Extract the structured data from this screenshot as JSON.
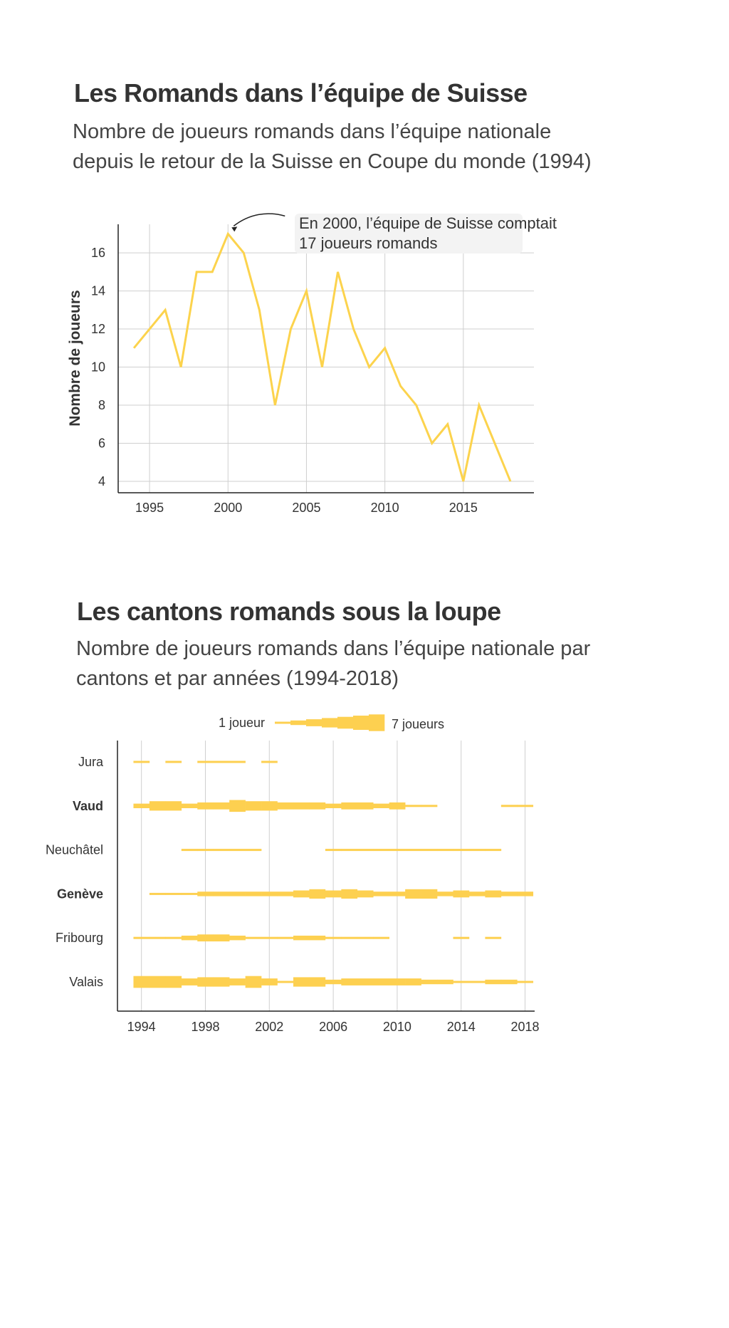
{
  "chart_data": [
    {
      "type": "line",
      "title": "Les Romands dans l’équipe de Suisse",
      "subtitle_lines": [
        "Nombre de joueurs romands dans l’équipe nationale",
        "depuis le retour de la Suisse en Coupe du monde (1994)"
      ],
      "ylabel": "Nombre de joueurs",
      "xlabel": "",
      "xlim": [
        1993,
        2019.5
      ],
      "ylim": [
        3.4,
        17.5
      ],
      "x_ticks": [
        1995,
        2000,
        2005,
        2010,
        2015
      ],
      "y_ticks": [
        4,
        6,
        8,
        10,
        12,
        14,
        16
      ],
      "grid": true,
      "color": "#fcd34d",
      "series": [
        {
          "x": [
            1994,
            1995,
            1996,
            1997,
            1998,
            1999,
            2000,
            2001,
            2002,
            2003,
            2004,
            2005,
            2006,
            2007,
            2008,
            2009,
            2010,
            2011,
            2012,
            2013,
            2014,
            2015,
            2016,
            2017,
            2018
          ],
          "values": [
            11,
            12,
            13,
            10,
            15,
            15,
            17,
            16,
            13,
            8,
            12,
            14,
            10,
            15,
            12,
            10,
            11,
            9,
            8,
            6,
            7,
            4,
            8,
            6,
            4
          ]
        }
      ],
      "annotation": {
        "x": 2000,
        "y": 17,
        "lines": [
          "En 2000, l’équipe de Suisse comptait",
          "17 joueurs romands"
        ]
      }
    },
    {
      "type": "variable-width-timeline",
      "title": "Les cantons romands sous la loupe",
      "subtitle_lines": [
        "Nombre de joueurs romands dans l’équipe nationale par",
        "cantons et par années (1994-2018)"
      ],
      "xlim": [
        1992.5,
        2018.6
      ],
      "x_ticks": [
        1994,
        1998,
        2002,
        2006,
        2010,
        2014,
        2018
      ],
      "grid": true,
      "color": "#fdd050",
      "legend": {
        "placement": "top-center",
        "min_label": "1 joueur",
        "max_label": "7 joueurs",
        "steps": [
          1,
          2,
          3,
          4,
          5,
          6,
          7
        ]
      },
      "rows": [
        {
          "name": "Jura",
          "bold": false,
          "values": [
            1,
            0,
            1,
            0,
            1,
            1,
            1,
            0,
            1,
            0,
            0,
            0,
            0,
            0,
            0,
            0,
            0,
            0,
            0,
            0,
            0,
            0,
            0,
            0,
            0
          ]
        },
        {
          "name": "Vaud",
          "bold": true,
          "values": [
            2,
            4,
            4,
            2,
            3,
            3,
            5,
            4,
            4,
            3,
            3,
            3,
            2,
            3,
            3,
            2,
            3,
            1,
            1,
            0,
            0,
            0,
            0,
            1,
            1
          ]
        },
        {
          "name": "Neuchâtel",
          "bold": false,
          "values": [
            0,
            0,
            0,
            1,
            1,
            1,
            1,
            1,
            0,
            0,
            0,
            0,
            1,
            1,
            1,
            1,
            1,
            1,
            1,
            1,
            1,
            1,
            1,
            0,
            0
          ]
        },
        {
          "name": "Genève",
          "bold": true,
          "values": [
            0,
            1,
            1,
            1,
            2,
            2,
            2,
            2,
            2,
            2,
            3,
            4,
            3,
            4,
            3,
            2,
            2,
            4,
            4,
            2,
            3,
            2,
            3,
            2,
            2
          ]
        },
        {
          "name": "Fribourg",
          "bold": false,
          "values": [
            1,
            1,
            1,
            2,
            3,
            3,
            2,
            1,
            1,
            1,
            2,
            2,
            1,
            1,
            1,
            1,
            0,
            0,
            0,
            0,
            1,
            0,
            1,
            0,
            0
          ]
        },
        {
          "name": "Valais",
          "bold": false,
          "values": [
            5,
            5,
            5,
            3,
            4,
            4,
            3,
            5,
            3,
            1,
            4,
            4,
            2,
            3,
            3,
            3,
            3,
            3,
            2,
            2,
            1,
            1,
            2,
            2,
            1
          ]
        }
      ]
    }
  ]
}
